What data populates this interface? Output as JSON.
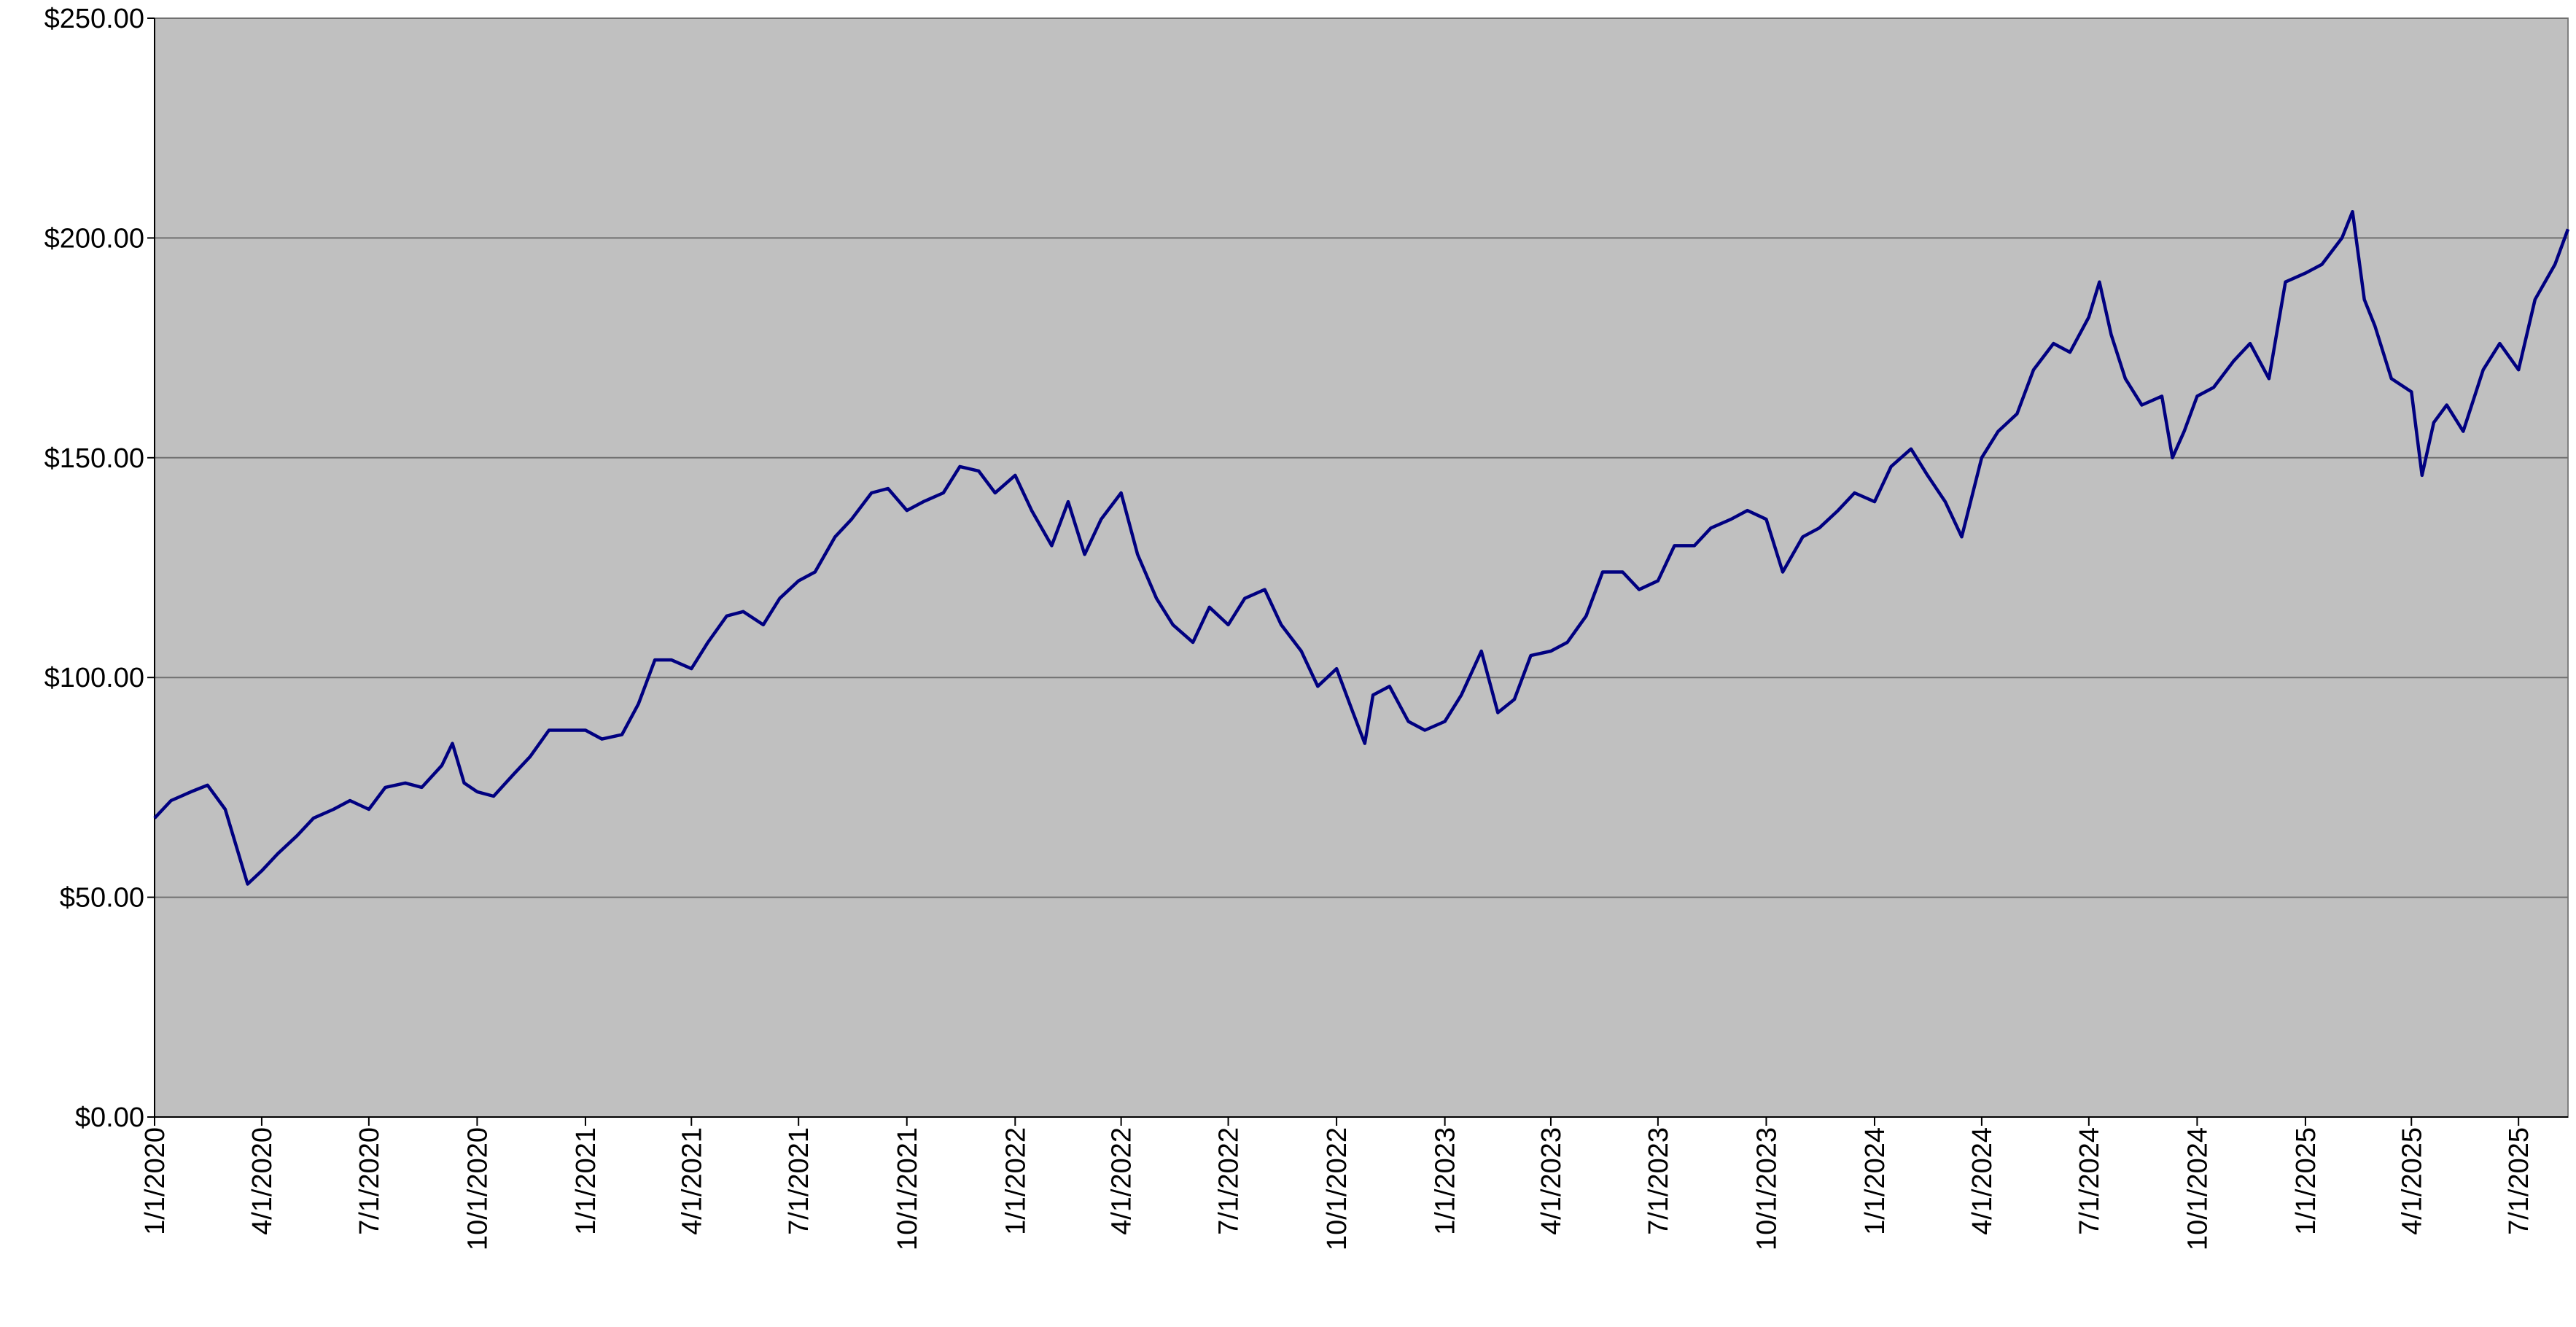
{
  "chart_data": {
    "type": "line",
    "xlim": [
      "2020-01-01",
      "2025-08-12"
    ],
    "xticks": [
      {
        "value": "2020-01-01",
        "label": "1/1/2020"
      },
      {
        "value": "2020-04-01",
        "label": "4/1/2020"
      },
      {
        "value": "2020-07-01",
        "label": "7/1/2020"
      },
      {
        "value": "2020-10-01",
        "label": "10/1/2020"
      },
      {
        "value": "2021-01-01",
        "label": "1/1/2021"
      },
      {
        "value": "2021-04-01",
        "label": "4/1/2021"
      },
      {
        "value": "2021-07-01",
        "label": "7/1/2021"
      },
      {
        "value": "2021-10-01",
        "label": "10/1/2021"
      },
      {
        "value": "2022-01-01",
        "label": "1/1/2022"
      },
      {
        "value": "2022-04-01",
        "label": "4/1/2022"
      },
      {
        "value": "2022-07-01",
        "label": "7/1/2022"
      },
      {
        "value": "2022-10-01",
        "label": "10/1/2022"
      },
      {
        "value": "2023-01-01",
        "label": "1/1/2023"
      },
      {
        "value": "2023-04-01",
        "label": "4/1/2023"
      },
      {
        "value": "2023-07-01",
        "label": "7/1/2023"
      },
      {
        "value": "2023-10-01",
        "label": "10/1/2023"
      },
      {
        "value": "2024-01-01",
        "label": "1/1/2024"
      },
      {
        "value": "2024-04-01",
        "label": "4/1/2024"
      },
      {
        "value": "2024-07-01",
        "label": "7/1/2024"
      },
      {
        "value": "2024-10-01",
        "label": "10/1/2024"
      },
      {
        "value": "2025-01-01",
        "label": "1/1/2025"
      },
      {
        "value": "2025-04-01",
        "label": "4/1/2025"
      },
      {
        "value": "2025-07-01",
        "label": "7/1/2025"
      }
    ],
    "ylim": [
      0,
      250
    ],
    "yticks": [
      {
        "value": 0,
        "label": "$0.00"
      },
      {
        "value": 50,
        "label": "$50.00"
      },
      {
        "value": 100,
        "label": "$100.00"
      },
      {
        "value": 150,
        "label": "$150.00"
      },
      {
        "value": 200,
        "label": "$200.00"
      },
      {
        "value": 250,
        "label": "$250.00"
      }
    ],
    "grid": true,
    "plot_background": "#c0c0c0",
    "x": [
      "2020-01-01",
      "2020-01-15",
      "2020-02-01",
      "2020-02-15",
      "2020-03-01",
      "2020-03-20",
      "2020-04-01",
      "2020-04-15",
      "2020-05-01",
      "2020-05-15",
      "2020-06-01",
      "2020-06-15",
      "2020-07-01",
      "2020-07-15",
      "2020-08-01",
      "2020-08-15",
      "2020-09-01",
      "2020-09-10",
      "2020-09-20",
      "2020-10-01",
      "2020-10-15",
      "2020-11-01",
      "2020-11-15",
      "2020-12-01",
      "2020-12-15",
      "2021-01-01",
      "2021-01-15",
      "2021-02-01",
      "2021-02-15",
      "2021-03-01",
      "2021-03-15",
      "2021-04-01",
      "2021-04-15",
      "2021-05-01",
      "2021-05-15",
      "2021-06-01",
      "2021-06-15",
      "2021-07-01",
      "2021-07-15",
      "2021-08-01",
      "2021-08-15",
      "2021-09-01",
      "2021-09-15",
      "2021-10-01",
      "2021-10-15",
      "2021-11-01",
      "2021-11-15",
      "2021-12-01",
      "2021-12-15",
      "2022-01-01",
      "2022-01-15",
      "2022-02-01",
      "2022-02-15",
      "2022-03-01",
      "2022-03-15",
      "2022-04-01",
      "2022-04-15",
      "2022-05-01",
      "2022-05-15",
      "2022-06-01",
      "2022-06-15",
      "2022-07-01",
      "2022-07-15",
      "2022-08-01",
      "2022-08-15",
      "2022-09-01",
      "2022-09-15",
      "2022-10-01",
      "2022-10-15",
      "2022-10-25",
      "2022-11-01",
      "2022-11-15",
      "2022-12-01",
      "2022-12-15",
      "2023-01-01",
      "2023-01-15",
      "2023-02-01",
      "2023-02-15",
      "2023-03-01",
      "2023-03-15",
      "2023-04-01",
      "2023-04-15",
      "2023-05-01",
      "2023-05-15",
      "2023-06-01",
      "2023-06-15",
      "2023-07-01",
      "2023-07-15",
      "2023-08-01",
      "2023-08-15",
      "2023-09-01",
      "2023-09-15",
      "2023-10-01",
      "2023-10-15",
      "2023-11-01",
      "2023-11-15",
      "2023-12-01",
      "2023-12-15",
      "2024-01-01",
      "2024-01-15",
      "2024-02-01",
      "2024-02-15",
      "2024-03-01",
      "2024-03-15",
      "2024-04-01",
      "2024-04-15",
      "2024-05-01",
      "2024-05-15",
      "2024-06-01",
      "2024-06-15",
      "2024-07-01",
      "2024-07-10",
      "2024-07-20",
      "2024-08-01",
      "2024-08-15",
      "2024-09-01",
      "2024-09-10",
      "2024-09-20",
      "2024-10-01",
      "2024-10-15",
      "2024-11-01",
      "2024-11-15",
      "2024-12-01",
      "2024-12-15",
      "2025-01-01",
      "2025-01-15",
      "2025-02-01",
      "2025-02-10",
      "2025-02-20",
      "2025-03-01",
      "2025-03-15",
      "2025-04-01",
      "2025-04-10",
      "2025-04-20",
      "2025-05-01",
      "2025-05-15",
      "2025-06-01",
      "2025-06-15",
      "2025-07-01",
      "2025-07-15",
      "2025-08-01",
      "2025-08-12"
    ],
    "series": [
      {
        "color": "#000080",
        "values": [
          68,
          72,
          74,
          75.5,
          70,
          53,
          56,
          60,
          64,
          68,
          70,
          72,
          70,
          75,
          76,
          75,
          80,
          85,
          76,
          74,
          73,
          78,
          82,
          88,
          88,
          88,
          86,
          87,
          94,
          104,
          104,
          102,
          108,
          114,
          115,
          112,
          118,
          122,
          124,
          132,
          136,
          142,
          143,
          138,
          140,
          142,
          148,
          147,
          142,
          146,
          138,
          130,
          140,
          128,
          136,
          142,
          128,
          118,
          112,
          108,
          116,
          112,
          118,
          120,
          112,
          106,
          98,
          102,
          92,
          85,
          96,
          98,
          90,
          88,
          90,
          96,
          106,
          92,
          95,
          105,
          106,
          108,
          114,
          124,
          124,
          120,
          122,
          130,
          130,
          134,
          136,
          138,
          136,
          124,
          132,
          134,
          138,
          142,
          140,
          148,
          152,
          146,
          140,
          132,
          150,
          156,
          160,
          170,
          176,
          174,
          182,
          190,
          178,
          168,
          162,
          164,
          150,
          156,
          164,
          166,
          172,
          176,
          168,
          190,
          192,
          194,
          200,
          206,
          186,
          180,
          168,
          165,
          146,
          158,
          162,
          156,
          170,
          176,
          170,
          186,
          194,
          202
        ]
      }
    ]
  }
}
